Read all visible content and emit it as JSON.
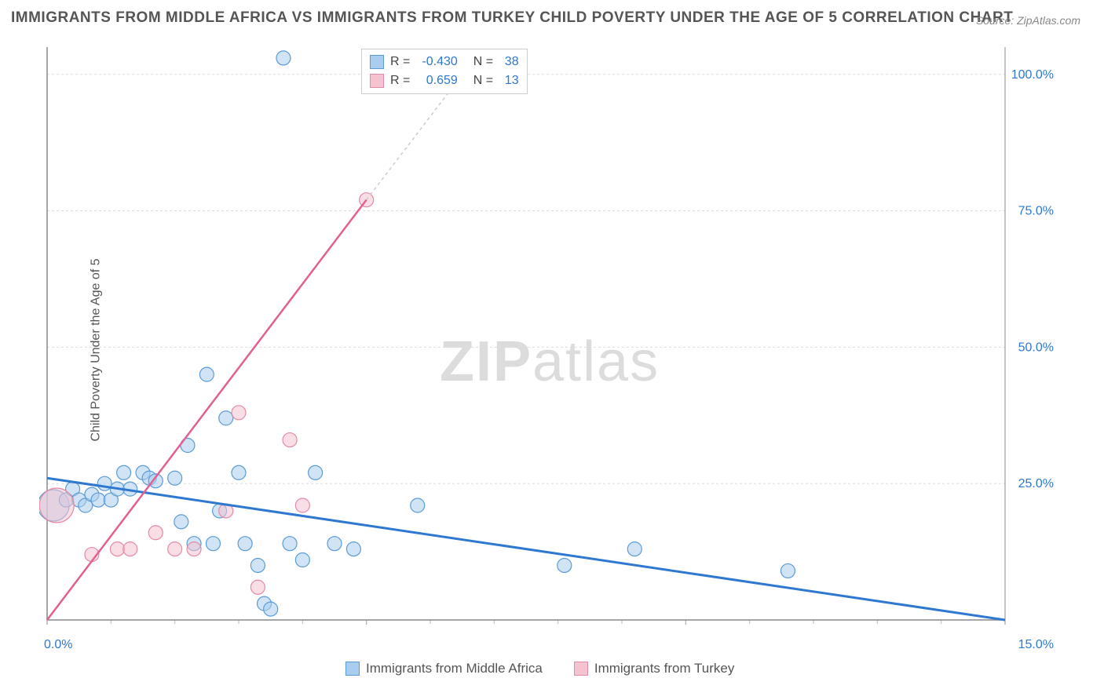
{
  "title": "IMMIGRANTS FROM MIDDLE AFRICA VS IMMIGRANTS FROM TURKEY CHILD POVERTY UNDER THE AGE OF 5 CORRELATION CHART",
  "source": "Source: ZipAtlas.com",
  "watermark_bold": "ZIP",
  "watermark_light": "atlas",
  "y_axis_label": "Child Poverty Under the Age of 5",
  "chart": {
    "type": "scatter",
    "background_color": "#ffffff",
    "grid_color": "#dddddd",
    "axis_color": "#888888",
    "xlim": [
      0,
      15
    ],
    "ylim": [
      0,
      105
    ],
    "x_ticks": [
      0,
      5,
      10,
      15
    ],
    "x_tick_labels": [
      "0.0%",
      "",
      "",
      "15.0%"
    ],
    "y_ticks": [
      25,
      50,
      75,
      100
    ],
    "y_tick_labels": [
      "25.0%",
      "50.0%",
      "75.0%",
      "100.0%"
    ],
    "series": [
      {
        "name": "Immigrants from Middle Africa",
        "fill_color": "#a9cdef",
        "stroke_color": "#5b9bd5",
        "fill_opacity": 0.55,
        "marker_radius": 9,
        "R": "-0.430",
        "N": "38",
        "trend": {
          "x1": 0,
          "y1": 26,
          "x2": 15,
          "y2": 0,
          "color": "#2e78d0",
          "width": 3,
          "dash": ""
        },
        "dashed_extension": null,
        "points": [
          {
            "x": 0.1,
            "y": 21,
            "r": 20
          },
          {
            "x": 0.3,
            "y": 22
          },
          {
            "x": 0.4,
            "y": 24
          },
          {
            "x": 0.5,
            "y": 22
          },
          {
            "x": 0.6,
            "y": 21
          },
          {
            "x": 0.7,
            "y": 23
          },
          {
            "x": 0.8,
            "y": 22
          },
          {
            "x": 0.9,
            "y": 25
          },
          {
            "x": 1.0,
            "y": 22
          },
          {
            "x": 1.1,
            "y": 24
          },
          {
            "x": 1.2,
            "y": 27
          },
          {
            "x": 1.3,
            "y": 24
          },
          {
            "x": 1.5,
            "y": 27
          },
          {
            "x": 1.6,
            "y": 26
          },
          {
            "x": 1.7,
            "y": 25.5
          },
          {
            "x": 2.0,
            "y": 26
          },
          {
            "x": 2.1,
            "y": 18
          },
          {
            "x": 2.2,
            "y": 32
          },
          {
            "x": 2.3,
            "y": 14
          },
          {
            "x": 2.5,
            "y": 45
          },
          {
            "x": 2.6,
            "y": 14
          },
          {
            "x": 2.7,
            "y": 20
          },
          {
            "x": 2.8,
            "y": 37
          },
          {
            "x": 3.0,
            "y": 27
          },
          {
            "x": 3.1,
            "y": 14
          },
          {
            "x": 3.3,
            "y": 10
          },
          {
            "x": 3.4,
            "y": 3
          },
          {
            "x": 3.5,
            "y": 2
          },
          {
            "x": 3.7,
            "y": 103
          },
          {
            "x": 3.8,
            "y": 14
          },
          {
            "x": 4.0,
            "y": 11
          },
          {
            "x": 4.2,
            "y": 27
          },
          {
            "x": 4.5,
            "y": 14
          },
          {
            "x": 4.8,
            "y": 13
          },
          {
            "x": 5.8,
            "y": 21
          },
          {
            "x": 8.1,
            "y": 10
          },
          {
            "x": 9.2,
            "y": 13
          },
          {
            "x": 11.6,
            "y": 9
          }
        ]
      },
      {
        "name": "Immigrants from Turkey",
        "fill_color": "#f5c3d0",
        "stroke_color": "#e38aa5",
        "fill_opacity": 0.55,
        "marker_radius": 9,
        "R": "0.659",
        "N": "13",
        "trend": {
          "x1": 0,
          "y1": 0,
          "x2": 5.0,
          "y2": 77,
          "color": "#e26091",
          "width": 2.5,
          "dash": ""
        },
        "dashed_extension": {
          "x1": 5.0,
          "y1": 77,
          "x2": 6.7,
          "y2": 103,
          "color": "#cccccc",
          "width": 1.5,
          "dash": "4 4"
        },
        "points": [
          {
            "x": 0.15,
            "y": 21,
            "r": 22
          },
          {
            "x": 0.7,
            "y": 12
          },
          {
            "x": 1.1,
            "y": 13
          },
          {
            "x": 1.3,
            "y": 13
          },
          {
            "x": 1.7,
            "y": 16
          },
          {
            "x": 2.0,
            "y": 13
          },
          {
            "x": 2.3,
            "y": 13
          },
          {
            "x": 2.8,
            "y": 20
          },
          {
            "x": 3.0,
            "y": 38
          },
          {
            "x": 3.3,
            "y": 6
          },
          {
            "x": 3.8,
            "y": 33
          },
          {
            "x": 4.0,
            "y": 21
          },
          {
            "x": 5.0,
            "y": 77
          }
        ]
      }
    ]
  },
  "legend_top": {
    "rows": [
      {
        "swatch_fill": "#a9cdef",
        "swatch_stroke": "#5b9bd5",
        "R_label": "R =",
        "R_val": "-0.430",
        "N_label": "N =",
        "N_val": "38"
      },
      {
        "swatch_fill": "#f5c3d0",
        "swatch_stroke": "#e38aa5",
        "R_label": "R =",
        "R_val": "0.659",
        "N_label": "N =",
        "N_val": "13"
      }
    ]
  },
  "legend_bottom": {
    "items": [
      {
        "swatch_fill": "#a9cdef",
        "swatch_stroke": "#5b9bd5",
        "label": "Immigrants from Middle Africa"
      },
      {
        "swatch_fill": "#f5c3d0",
        "swatch_stroke": "#e38aa5",
        "label": "Immigrants from Turkey"
      }
    ]
  }
}
